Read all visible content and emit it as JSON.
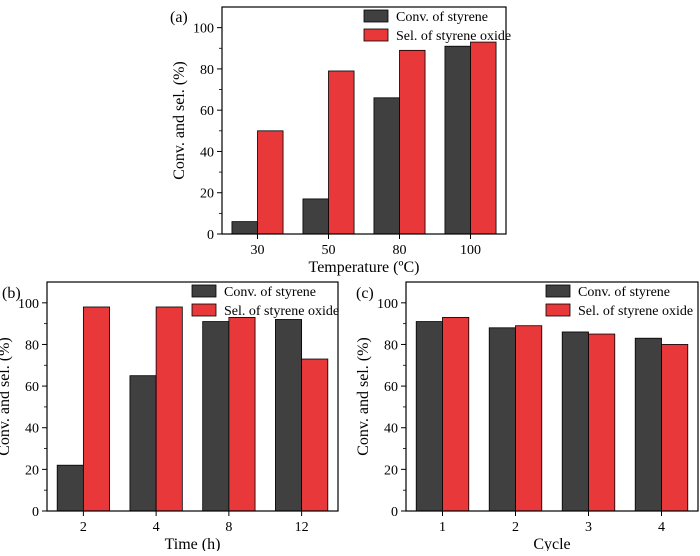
{
  "colors": {
    "conv": "#404040",
    "sel": "#e8383a",
    "axis": "#000000"
  },
  "chart_data": [
    {
      "type": "bar",
      "panel_label": "(a)",
      "categories": [
        "30",
        "50",
        "80",
        "100"
      ],
      "series": [
        {
          "name": "Conv. of styrene",
          "values": [
            6,
            17,
            66,
            91
          ]
        },
        {
          "name": "Sel. of styrene oxide",
          "values": [
            50,
            79,
            89,
            93
          ]
        }
      ],
      "xlabel": "Temperature (ºC)",
      "ylabel": "Conv. and sel. (%)",
      "ylim": [
        0,
        110
      ],
      "yticks": [
        "0",
        "20",
        "40",
        "60",
        "80",
        "100"
      ],
      "legend": "top-right"
    },
    {
      "type": "bar",
      "panel_label": "(b)",
      "categories": [
        "2",
        "4",
        "8",
        "12"
      ],
      "series": [
        {
          "name": "Conv. of styrene",
          "values": [
            22,
            65,
            91,
            92
          ]
        },
        {
          "name": "Sel. of styrene oxide",
          "values": [
            98,
            98,
            93,
            73
          ]
        }
      ],
      "xlabel": "Time (h)",
      "ylabel": "Conv. and sel. (%)",
      "ylim": [
        0,
        110
      ],
      "yticks": [
        "0",
        "20",
        "40",
        "60",
        "80",
        "100"
      ],
      "legend": "top-right"
    },
    {
      "type": "bar",
      "panel_label": "(c)",
      "categories": [
        "1",
        "2",
        "3",
        "4"
      ],
      "series": [
        {
          "name": "Conv. of styrene",
          "values": [
            91,
            88,
            86,
            83
          ]
        },
        {
          "name": "Sel. of styrene oxide",
          "values": [
            93,
            89,
            85,
            80
          ]
        }
      ],
      "xlabel": "Cycle",
      "ylabel": "Conv. and sel. (%)",
      "ylim": [
        0,
        110
      ],
      "yticks": [
        "0",
        "20",
        "40",
        "60",
        "80",
        "100"
      ],
      "legend": "top-right"
    }
  ]
}
